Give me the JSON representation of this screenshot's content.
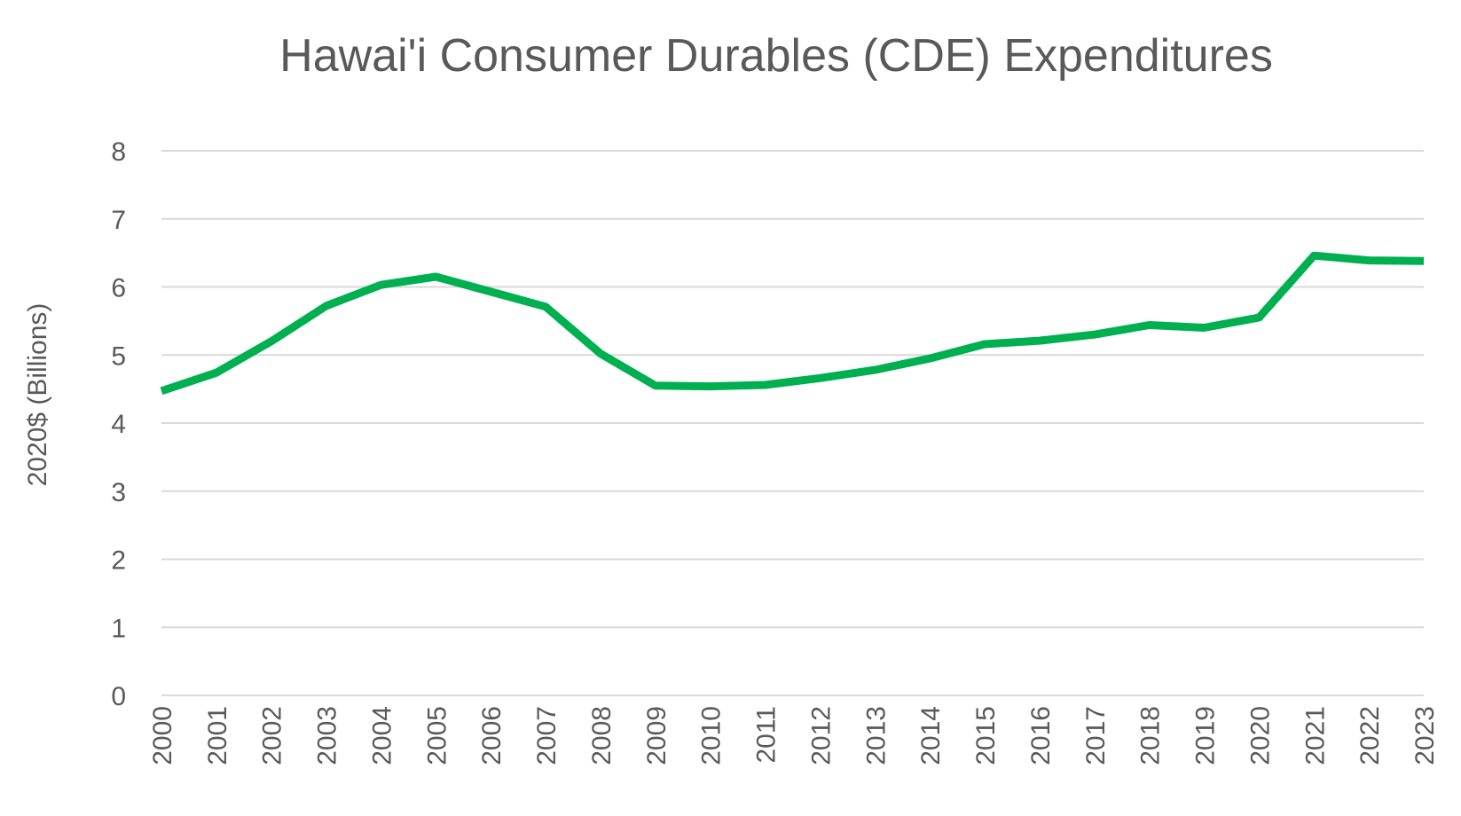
{
  "chart_data": {
    "type": "line",
    "title": "Hawai'i Consumer Durables (CDE) Expenditures",
    "xlabel": "",
    "ylabel": "2020$ (Billions)",
    "ylim": [
      0,
      8
    ],
    "yticks": [
      "0",
      "1",
      "2",
      "3",
      "4",
      "5",
      "6",
      "7",
      "8"
    ],
    "categories": [
      "2000",
      "2001",
      "2002",
      "2003",
      "2004",
      "2005",
      "2006",
      "2007",
      "2008",
      "2009",
      "2010",
      "2011",
      "2012",
      "2013",
      "2014",
      "2015",
      "2016",
      "2017",
      "2018",
      "2019",
      "2020",
      "2021",
      "2022",
      "2023"
    ],
    "series": [
      {
        "values": [
          4.47,
          4.74,
          5.2,
          5.72,
          6.03,
          6.15,
          5.93,
          5.71,
          5.02,
          4.55,
          4.54,
          4.56,
          4.66,
          4.78,
          4.95,
          5.16,
          5.21,
          5.3,
          5.44,
          5.4,
          5.55,
          6.46,
          6.39,
          6.38
        ],
        "color": "#00b050"
      }
    ],
    "grid": true,
    "legend": "none"
  }
}
